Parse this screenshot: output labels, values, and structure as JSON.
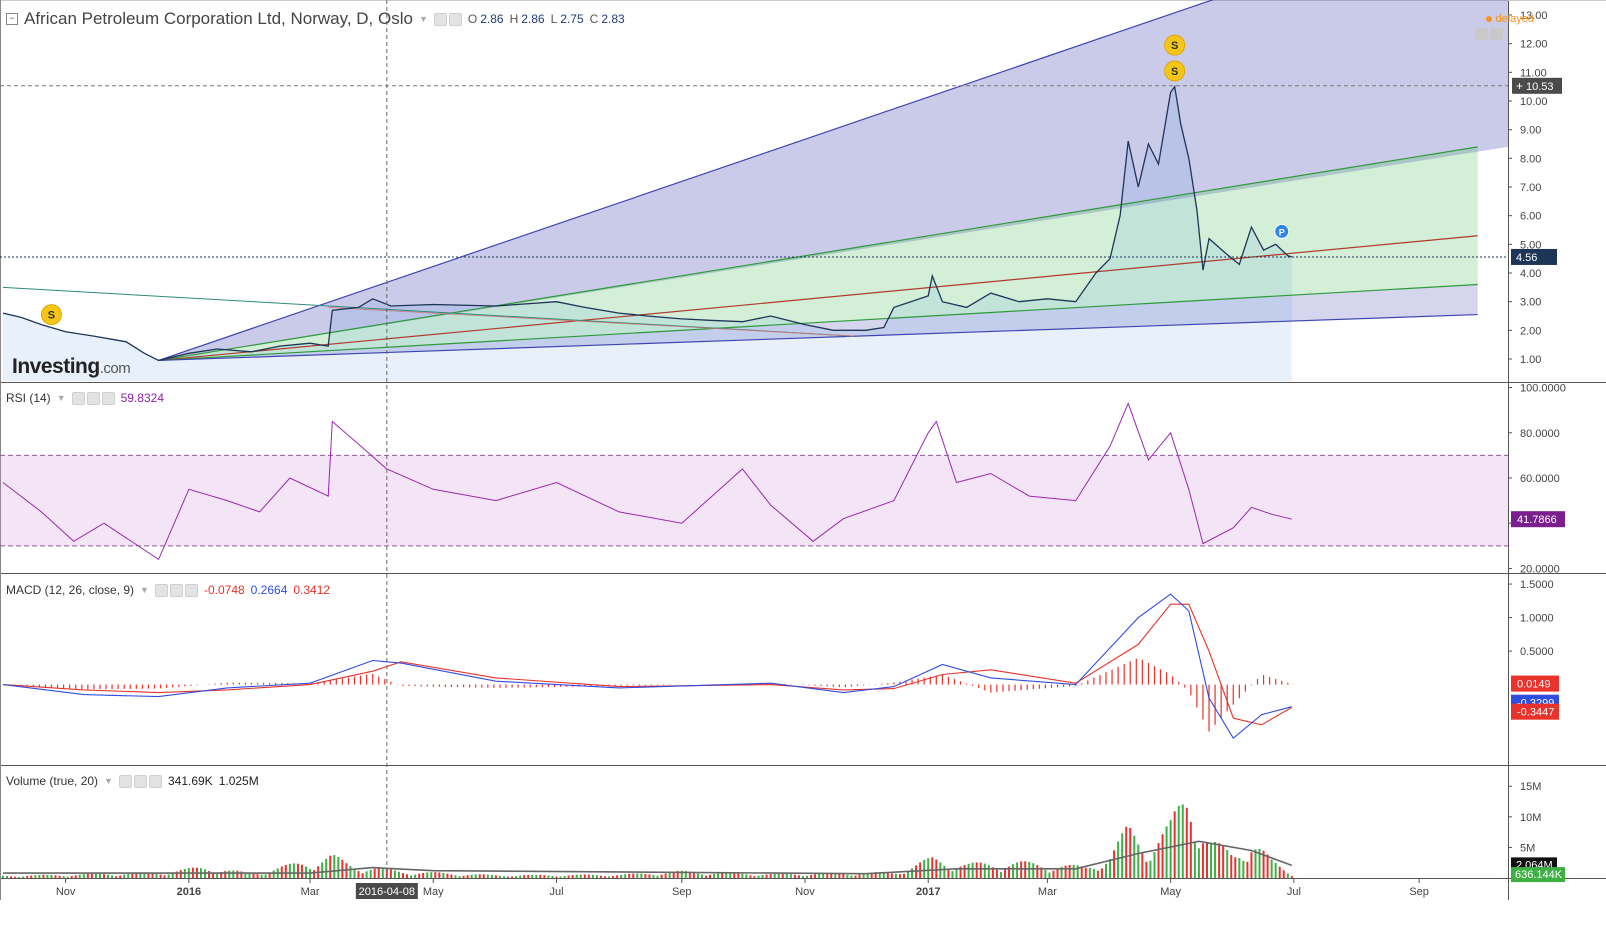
{
  "header": {
    "title": "African Petroleum Corporation Ltd, Norway, D, Oslo",
    "ohlc": [
      {
        "label": "O",
        "value": "2.86"
      },
      {
        "label": "H",
        "value": "2.86"
      },
      {
        "label": "L",
        "value": "2.75"
      },
      {
        "label": "C",
        "value": "2.83"
      }
    ]
  },
  "status": {
    "delayed": "delayed"
  },
  "logo": {
    "brand": "Investing",
    "suffix": ".com"
  },
  "colors": {
    "price_line": "#1d3557",
    "fan_blue": "#3f45b0",
    "fan_green": "#2e9a3a",
    "fan_red": "#b03a2e",
    "rsi_line": "#9c27b0",
    "macd_line": "#2f4de0",
    "signal_line": "#e8322b",
    "hist": "#e8322b",
    "vol_up": "#3cb043",
    "vol_down": "#e83232",
    "vol_ma": "#666666"
  },
  "x_axis": {
    "labels": [
      "Nov",
      "2016",
      "Mar",
      "May",
      "Jul",
      "Sep",
      "Nov",
      "2017",
      "Mar",
      "May",
      "Jul",
      "Sep"
    ],
    "bold": [
      "2016",
      "2017"
    ],
    "crosshair_label": "2016-04-08"
  },
  "panes": {
    "rsi": {
      "label": "RSI (14)",
      "value": "59.8324",
      "last_badge": "41.7866",
      "ticks": [
        "100.0000",
        "80.0000",
        "60.0000",
        "40.0000",
        "20.0000"
      ]
    },
    "macd": {
      "label": "MACD (12, 26, close, 9)",
      "values": [
        "-0.0748",
        "0.2664",
        "0.3412"
      ],
      "badges": [
        "0.0149",
        "-0.3299",
        "-0.3447"
      ],
      "ticks": [
        "1.5000",
        "1.0000",
        "0.5000"
      ]
    },
    "volume": {
      "label": "Volume (true, 20)",
      "values": [
        "341.69K",
        "1.025M"
      ],
      "badges": [
        "2.064M",
        "636.144K"
      ],
      "ticks": [
        "15M",
        "10M",
        "5M"
      ]
    }
  },
  "chart_data": {
    "type": "line",
    "title": "African Petroleum Corporation Ltd, Norway, D, Oslo",
    "price_axis": {
      "ticks": [
        "13.00",
        "12.00",
        "11.00",
        "10.00",
        "9.00",
        "8.00",
        "7.00",
        "6.00",
        "5.00",
        "4.00",
        "3.00",
        "2.00",
        "1.00"
      ],
      "range": [
        0,
        13.2
      ],
      "last_price": "4.56",
      "crosshair_price": "10.53"
    },
    "price_series": [
      {
        "d": "2015-10-01",
        "v": 2.6
      },
      {
        "d": "2015-10-10",
        "v": 2.45
      },
      {
        "d": "2015-10-20",
        "v": 2.2
      },
      {
        "d": "2015-11-01",
        "v": 1.95
      },
      {
        "d": "2015-11-15",
        "v": 1.8
      },
      {
        "d": "2015-12-01",
        "v": 1.6
      },
      {
        "d": "2015-12-10",
        "v": 1.2
      },
      {
        "d": "2015-12-17",
        "v": 0.95
      },
      {
        "d": "2016-01-01",
        "v": 1.2
      },
      {
        "d": "2016-01-15",
        "v": 1.35
      },
      {
        "d": "2016-02-01",
        "v": 1.25
      },
      {
        "d": "2016-02-15",
        "v": 1.45
      },
      {
        "d": "2016-03-01",
        "v": 1.55
      },
      {
        "d": "2016-03-10",
        "v": 1.45
      },
      {
        "d": "2016-03-12",
        "v": 2.7
      },
      {
        "d": "2016-03-25",
        "v": 2.8
      },
      {
        "d": "2016-04-01",
        "v": 3.1
      },
      {
        "d": "2016-04-10",
        "v": 2.85
      },
      {
        "d": "2016-05-01",
        "v": 2.9
      },
      {
        "d": "2016-06-01",
        "v": 2.85
      },
      {
        "d": "2016-07-01",
        "v": 3.0
      },
      {
        "d": "2016-07-15",
        "v": 2.8
      },
      {
        "d": "2016-08-01",
        "v": 2.6
      },
      {
        "d": "2016-08-15",
        "v": 2.5
      },
      {
        "d": "2016-09-01",
        "v": 2.4
      },
      {
        "d": "2016-09-15",
        "v": 2.35
      },
      {
        "d": "2016-10-01",
        "v": 2.3
      },
      {
        "d": "2016-10-15",
        "v": 2.5
      },
      {
        "d": "2016-11-01",
        "v": 2.2
      },
      {
        "d": "2016-11-15",
        "v": 2.0
      },
      {
        "d": "2016-12-01",
        "v": 2.0
      },
      {
        "d": "2016-12-10",
        "v": 2.1
      },
      {
        "d": "2016-12-15",
        "v": 2.8
      },
      {
        "d": "2017-01-01",
        "v": 3.2
      },
      {
        "d": "2017-01-03",
        "v": 3.9
      },
      {
        "d": "2017-01-08",
        "v": 3.0
      },
      {
        "d": "2017-01-20",
        "v": 2.8
      },
      {
        "d": "2017-02-01",
        "v": 3.3
      },
      {
        "d": "2017-02-15",
        "v": 3.0
      },
      {
        "d": "2017-03-01",
        "v": 3.1
      },
      {
        "d": "2017-03-15",
        "v": 3.0
      },
      {
        "d": "2017-03-25",
        "v": 4.0
      },
      {
        "d": "2017-04-01",
        "v": 4.5
      },
      {
        "d": "2017-04-06",
        "v": 6.0
      },
      {
        "d": "2017-04-10",
        "v": 8.6
      },
      {
        "d": "2017-04-15",
        "v": 7.0
      },
      {
        "d": "2017-04-20",
        "v": 8.5
      },
      {
        "d": "2017-04-25",
        "v": 7.8
      },
      {
        "d": "2017-05-01",
        "v": 10.3
      },
      {
        "d": "2017-05-03",
        "v": 10.5
      },
      {
        "d": "2017-05-06",
        "v": 9.2
      },
      {
        "d": "2017-05-10",
        "v": 8.0
      },
      {
        "d": "2017-05-14",
        "v": 6.2
      },
      {
        "d": "2017-05-17",
        "v": 4.1
      },
      {
        "d": "2017-05-20",
        "v": 5.2
      },
      {
        "d": "2017-05-28",
        "v": 4.7
      },
      {
        "d": "2017-06-04",
        "v": 4.3
      },
      {
        "d": "2017-06-10",
        "v": 5.6
      },
      {
        "d": "2017-06-16",
        "v": 4.8
      },
      {
        "d": "2017-06-22",
        "v": 5.0
      },
      {
        "d": "2017-06-28",
        "v": 4.6
      },
      {
        "d": "2017-06-30",
        "v": 4.56
      }
    ],
    "rsi_series": [
      {
        "d": "2015-10-01",
        "v": 58
      },
      {
        "d": "2015-10-20",
        "v": 45
      },
      {
        "d": "2015-11-05",
        "v": 32
      },
      {
        "d": "2015-11-20",
        "v": 40
      },
      {
        "d": "2015-12-17",
        "v": 24
      },
      {
        "d": "2016-01-01",
        "v": 55
      },
      {
        "d": "2016-01-20",
        "v": 50
      },
      {
        "d": "2016-02-05",
        "v": 45
      },
      {
        "d": "2016-02-20",
        "v": 60
      },
      {
        "d": "2016-03-10",
        "v": 52
      },
      {
        "d": "2016-03-12",
        "v": 85
      },
      {
        "d": "2016-03-25",
        "v": 75
      },
      {
        "d": "2016-04-08",
        "v": 64
      },
      {
        "d": "2016-05-01",
        "v": 55
      },
      {
        "d": "2016-06-01",
        "v": 50
      },
      {
        "d": "2016-07-01",
        "v": 58
      },
      {
        "d": "2016-08-01",
        "v": 45
      },
      {
        "d": "2016-09-01",
        "v": 40
      },
      {
        "d": "2016-10-01",
        "v": 64
      },
      {
        "d": "2016-10-15",
        "v": 48
      },
      {
        "d": "2016-11-05",
        "v": 32
      },
      {
        "d": "2016-11-20",
        "v": 42
      },
      {
        "d": "2016-12-15",
        "v": 50
      },
      {
        "d": "2017-01-01",
        "v": 80
      },
      {
        "d": "2017-01-05",
        "v": 85
      },
      {
        "d": "2017-01-15",
        "v": 58
      },
      {
        "d": "2017-02-01",
        "v": 62
      },
      {
        "d": "2017-02-20",
        "v": 52
      },
      {
        "d": "2017-03-15",
        "v": 50
      },
      {
        "d": "2017-04-01",
        "v": 74
      },
      {
        "d": "2017-04-10",
        "v": 93
      },
      {
        "d": "2017-04-20",
        "v": 68
      },
      {
        "d": "2017-05-01",
        "v": 80
      },
      {
        "d": "2017-05-10",
        "v": 55
      },
      {
        "d": "2017-05-17",
        "v": 31
      },
      {
        "d": "2017-06-01",
        "v": 38
      },
      {
        "d": "2017-06-10",
        "v": 47
      },
      {
        "d": "2017-06-20",
        "v": 44
      },
      {
        "d": "2017-06-30",
        "v": 41.79
      }
    ],
    "rsi_bands": [
      30,
      70
    ],
    "macd_series": [
      {
        "d": "2015-10-01",
        "macd": 0.0,
        "signal": 0.0
      },
      {
        "d": "2015-11-10",
        "macd": -0.15,
        "signal": -0.08
      },
      {
        "d": "2015-12-17",
        "macd": -0.18,
        "signal": -0.12
      },
      {
        "d": "2016-01-20",
        "macd": -0.05,
        "signal": -0.08
      },
      {
        "d": "2016-03-01",
        "macd": 0.02,
        "signal": 0.0
      },
      {
        "d": "2016-04-01",
        "macd": 0.36,
        "signal": 0.2
      },
      {
        "d": "2016-04-15",
        "macd": 0.32,
        "signal": 0.34
      },
      {
        "d": "2016-06-01",
        "macd": 0.05,
        "signal": 0.1
      },
      {
        "d": "2016-08-01",
        "macd": -0.05,
        "signal": -0.03
      },
      {
        "d": "2016-10-15",
        "macd": 0.02,
        "signal": 0.0
      },
      {
        "d": "2016-11-20",
        "macd": -0.12,
        "signal": -0.08
      },
      {
        "d": "2016-12-15",
        "macd": -0.03,
        "signal": -0.06
      },
      {
        "d": "2017-01-08",
        "macd": 0.3,
        "signal": 0.15
      },
      {
        "d": "2017-02-01",
        "macd": 0.1,
        "signal": 0.22
      },
      {
        "d": "2017-03-15",
        "macd": 0.0,
        "signal": 0.02
      },
      {
        "d": "2017-04-15",
        "macd": 1.0,
        "signal": 0.6
      },
      {
        "d": "2017-05-01",
        "macd": 1.35,
        "signal": 1.2
      },
      {
        "d": "2017-05-10",
        "macd": 1.1,
        "signal": 1.2
      },
      {
        "d": "2017-05-20",
        "macd": -0.2,
        "signal": 0.5
      },
      {
        "d": "2017-06-01",
        "macd": -0.8,
        "signal": -0.5
      },
      {
        "d": "2017-06-15",
        "macd": -0.45,
        "signal": -0.6
      },
      {
        "d": "2017-06-30",
        "macd": -0.33,
        "signal": -0.34
      }
    ],
    "volume_series": [
      {
        "d": "2015-10-01",
        "v": 0.4
      },
      {
        "d": "2015-11-01",
        "v": 0.6
      },
      {
        "d": "2015-12-17",
        "v": 1.0
      },
      {
        "d": "2016-01-10",
        "v": 2.0
      },
      {
        "d": "2016-02-01",
        "v": 0.8
      },
      {
        "d": "2016-03-12",
        "v": 4.0
      },
      {
        "d": "2016-03-20",
        "v": 2.5
      },
      {
        "d": "2016-04-15",
        "v": 1.2
      },
      {
        "d": "2016-06-01",
        "v": 0.5
      },
      {
        "d": "2016-08-01",
        "v": 0.6
      },
      {
        "d": "2016-09-01",
        "v": 1.2
      },
      {
        "d": "2016-10-15",
        "v": 0.7
      },
      {
        "d": "2016-12-15",
        "v": 1.0
      },
      {
        "d": "2017-01-03",
        "v": 3.5
      },
      {
        "d": "2017-01-20",
        "v": 2.5
      },
      {
        "d": "2017-02-15",
        "v": 2.8
      },
      {
        "d": "2017-03-20",
        "v": 2.0
      },
      {
        "d": "2017-04-01",
        "v": 4.0
      },
      {
        "d": "2017-04-10",
        "v": 9.0
      },
      {
        "d": "2017-04-20",
        "v": 6.0
      },
      {
        "d": "2017-05-01",
        "v": 9.5
      },
      {
        "d": "2017-05-10",
        "v": 16.0
      },
      {
        "d": "2017-05-20",
        "v": 7.0
      },
      {
        "d": "2017-06-01",
        "v": 4.0
      },
      {
        "d": "2017-06-10",
        "v": 7.5
      },
      {
        "d": "2017-06-20",
        "v": 3.0
      },
      {
        "d": "2017-06-30",
        "v": 0.64
      }
    ],
    "volume_ma": [
      {
        "d": "2015-10-01",
        "v": 0.8
      },
      {
        "d": "2016-03-01",
        "v": 0.8
      },
      {
        "d": "2016-04-01",
        "v": 1.7
      },
      {
        "d": "2016-05-01",
        "v": 1.2
      },
      {
        "d": "2016-12-01",
        "v": 0.7
      },
      {
        "d": "2017-01-15",
        "v": 1.5
      },
      {
        "d": "2017-03-15",
        "v": 1.5
      },
      {
        "d": "2017-04-15",
        "v": 4.0
      },
      {
        "d": "2017-05-15",
        "v": 6.0
      },
      {
        "d": "2017-06-10",
        "v": 4.5
      },
      {
        "d": "2017-06-30",
        "v": 2.06
      }
    ],
    "markers": [
      {
        "d": "2015-10-25",
        "price": 2.55,
        "label": "S"
      },
      {
        "d": "2017-05-03",
        "price": 11.95,
        "label": "S"
      },
      {
        "d": "2017-05-03",
        "price": 11.05,
        "label": "S"
      },
      {
        "d": "2017-06-25",
        "price": 5.45,
        "label": "P"
      }
    ],
    "fan": {
      "origin": {
        "d": "2015-12-17",
        "v": 0.95
      },
      "lines": [
        {
          "to": {
            "d": "2017-07-01",
            "v": 14.5
          },
          "color": "#3f45b0"
        },
        {
          "to": {
            "d": "2017-09-30",
            "v": 8.4
          },
          "color": "#2e9a3a"
        },
        {
          "to": {
            "d": "2017-09-30",
            "v": 5.3
          },
          "color": "#b03a2e"
        },
        {
          "to": {
            "d": "2017-09-30",
            "v": 3.6
          },
          "color": "#2e9a3a"
        },
        {
          "to": {
            "d": "2017-09-30",
            "v": 2.55
          },
          "color": "#3f45b0"
        }
      ]
    },
    "trendline": {
      "from": {
        "d": "2015-10-01",
        "v": 3.5
      },
      "to": {
        "d": "2016-11-25",
        "v": 1.8
      },
      "color": "#2e8b7a"
    }
  }
}
